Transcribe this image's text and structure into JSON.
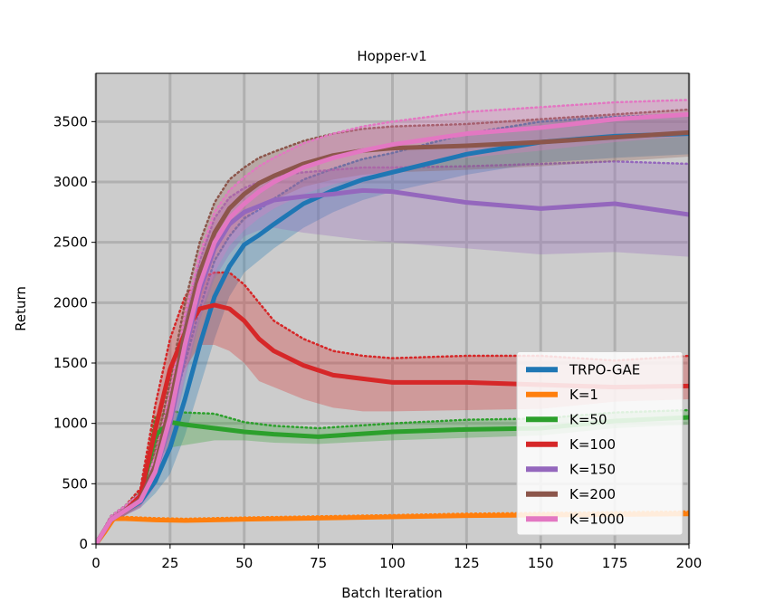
{
  "chart_data": {
    "type": "line",
    "title": "Hopper-v1",
    "xlabel": "Batch Iteration",
    "ylabel": "Return",
    "xlim": [
      0,
      200
    ],
    "ylim": [
      0,
      3900
    ],
    "xticks": [
      0,
      25,
      50,
      75,
      100,
      125,
      150,
      175,
      200
    ],
    "yticks": [
      0,
      500,
      1000,
      1500,
      2000,
      2500,
      3000,
      3500
    ],
    "grid": true,
    "legend_position": "lower-right",
    "background": "#cccccc",
    "grid_color": "#b0b0b0",
    "series": [
      {
        "name": "TRPO-GAE",
        "color": "#1f77b4",
        "x": [
          0,
          5,
          10,
          15,
          20,
          25,
          30,
          35,
          40,
          45,
          50,
          55,
          60,
          70,
          80,
          90,
          100,
          125,
          150,
          175,
          200
        ],
        "y": [
          0,
          200,
          280,
          350,
          520,
          800,
          1200,
          1650,
          2050,
          2300,
          2480,
          2560,
          2650,
          2820,
          2930,
          3020,
          3080,
          3230,
          3330,
          3380,
          3400
        ],
        "lower": [
          0,
          170,
          240,
          300,
          420,
          580,
          900,
          1300,
          1700,
          2050,
          2250,
          2350,
          2450,
          2620,
          2750,
          2850,
          2920,
          3060,
          3160,
          3200,
          3230
        ],
        "upper": [
          0,
          230,
          320,
          400,
          640,
          1050,
          1500,
          1950,
          2350,
          2550,
          2700,
          2770,
          2860,
          3020,
          3110,
          3190,
          3240,
          3400,
          3500,
          3540,
          3560
        ]
      },
      {
        "name": "K=1",
        "color": "#ff7f0e",
        "x": [
          0,
          3,
          6,
          10,
          20,
          30,
          50,
          75,
          100,
          125,
          150,
          175,
          200
        ],
        "y": [
          0,
          100,
          210,
          210,
          200,
          195,
          205,
          215,
          225,
          235,
          240,
          245,
          250
        ],
        "lower": [
          0,
          80,
          195,
          195,
          185,
          180,
          190,
          200,
          210,
          218,
          222,
          226,
          230
        ],
        "upper": [
          0,
          120,
          225,
          225,
          215,
          210,
          220,
          230,
          240,
          252,
          258,
          264,
          270
        ]
      },
      {
        "name": "K=50",
        "color": "#2ca02c",
        "x": [
          0,
          5,
          10,
          15,
          20,
          25,
          30,
          40,
          50,
          60,
          75,
          100,
          125,
          150,
          175,
          200
        ],
        "y": [
          0,
          200,
          280,
          380,
          900,
          1010,
          990,
          960,
          930,
          910,
          890,
          930,
          950,
          960,
          1020,
          1050
        ],
        "lower": [
          0,
          170,
          240,
          320,
          700,
          800,
          820,
          860,
          860,
          840,
          830,
          860,
          880,
          900,
          960,
          990
        ],
        "upper": [
          0,
          230,
          320,
          440,
          1050,
          1100,
          1090,
          1080,
          1010,
          980,
          960,
          1000,
          1030,
          1040,
          1090,
          1110
        ]
      },
      {
        "name": "K=100",
        "color": "#d62728",
        "x": [
          0,
          5,
          10,
          15,
          20,
          25,
          30,
          35,
          40,
          45,
          50,
          55,
          60,
          70,
          80,
          90,
          100,
          125,
          150,
          175,
          200
        ],
        "y": [
          0,
          200,
          280,
          400,
          950,
          1450,
          1750,
          1950,
          1980,
          1950,
          1850,
          1700,
          1600,
          1480,
          1400,
          1370,
          1340,
          1340,
          1320,
          1300,
          1310
        ],
        "lower": [
          0,
          170,
          240,
          340,
          750,
          1200,
          1450,
          1650,
          1650,
          1600,
          1500,
          1350,
          1300,
          1200,
          1130,
          1100,
          1100,
          1110,
          1120,
          1180,
          1200
        ],
        "upper": [
          0,
          230,
          320,
          460,
          1150,
          1700,
          2050,
          2200,
          2250,
          2250,
          2150,
          2000,
          1850,
          1700,
          1600,
          1560,
          1540,
          1560,
          1560,
          1520,
          1560
        ]
      },
      {
        "name": "K=150",
        "color": "#9467bd",
        "x": [
          0,
          5,
          10,
          15,
          20,
          25,
          30,
          35,
          40,
          45,
          50,
          55,
          60,
          70,
          80,
          90,
          100,
          125,
          150,
          175,
          200
        ],
        "y": [
          0,
          200,
          280,
          360,
          600,
          1000,
          1600,
          2100,
          2450,
          2650,
          2750,
          2800,
          2850,
          2880,
          2900,
          2930,
          2920,
          2830,
          2780,
          2820,
          2730
        ],
        "lower": [
          0,
          170,
          240,
          300,
          480,
          800,
          1350,
          1850,
          2200,
          2400,
          2550,
          2600,
          2620,
          2580,
          2550,
          2520,
          2500,
          2450,
          2400,
          2420,
          2380
        ],
        "upper": [
          0,
          230,
          320,
          420,
          720,
          1200,
          1850,
          2350,
          2700,
          2870,
          2950,
          3000,
          3050,
          3080,
          3100,
          3120,
          3120,
          3130,
          3150,
          3170,
          3150
        ]
      },
      {
        "name": "K=200",
        "color": "#8c564b",
        "x": [
          0,
          5,
          10,
          15,
          20,
          25,
          30,
          35,
          40,
          45,
          50,
          55,
          60,
          70,
          80,
          90,
          100,
          125,
          150,
          175,
          200
        ],
        "y": [
          0,
          200,
          280,
          370,
          650,
          1150,
          1750,
          2250,
          2580,
          2780,
          2900,
          2990,
          3050,
          3150,
          3220,
          3260,
          3280,
          3300,
          3330,
          3370,
          3410
        ],
        "lower": [
          0,
          170,
          240,
          310,
          520,
          950,
          1500,
          2000,
          2330,
          2540,
          2680,
          2780,
          2850,
          2960,
          3020,
          3060,
          3080,
          3100,
          3130,
          3170,
          3210
        ],
        "upper": [
          0,
          230,
          320,
          430,
          780,
          1350,
          2000,
          2500,
          2830,
          3020,
          3120,
          3200,
          3250,
          3340,
          3400,
          3440,
          3460,
          3480,
          3520,
          3560,
          3600
        ]
      },
      {
        "name": "K=1000",
        "color": "#e377c2",
        "x": [
          0,
          5,
          10,
          15,
          20,
          25,
          30,
          35,
          40,
          45,
          50,
          55,
          60,
          70,
          80,
          90,
          100,
          125,
          150,
          175,
          200
        ],
        "y": [
          0,
          200,
          280,
          360,
          600,
          1050,
          1650,
          2150,
          2500,
          2700,
          2820,
          2920,
          3000,
          3120,
          3200,
          3260,
          3310,
          3400,
          3450,
          3520,
          3560
        ],
        "lower": [
          0,
          170,
          240,
          300,
          480,
          850,
          1400,
          1900,
          2250,
          2470,
          2600,
          2700,
          2780,
          2900,
          2980,
          3040,
          3100,
          3200,
          3260,
          3330,
          3380
        ],
        "upper": [
          0,
          230,
          320,
          420,
          720,
          1250,
          1900,
          2400,
          2750,
          2930,
          3040,
          3130,
          3200,
          3320,
          3400,
          3460,
          3500,
          3580,
          3620,
          3660,
          3680
        ]
      }
    ]
  }
}
